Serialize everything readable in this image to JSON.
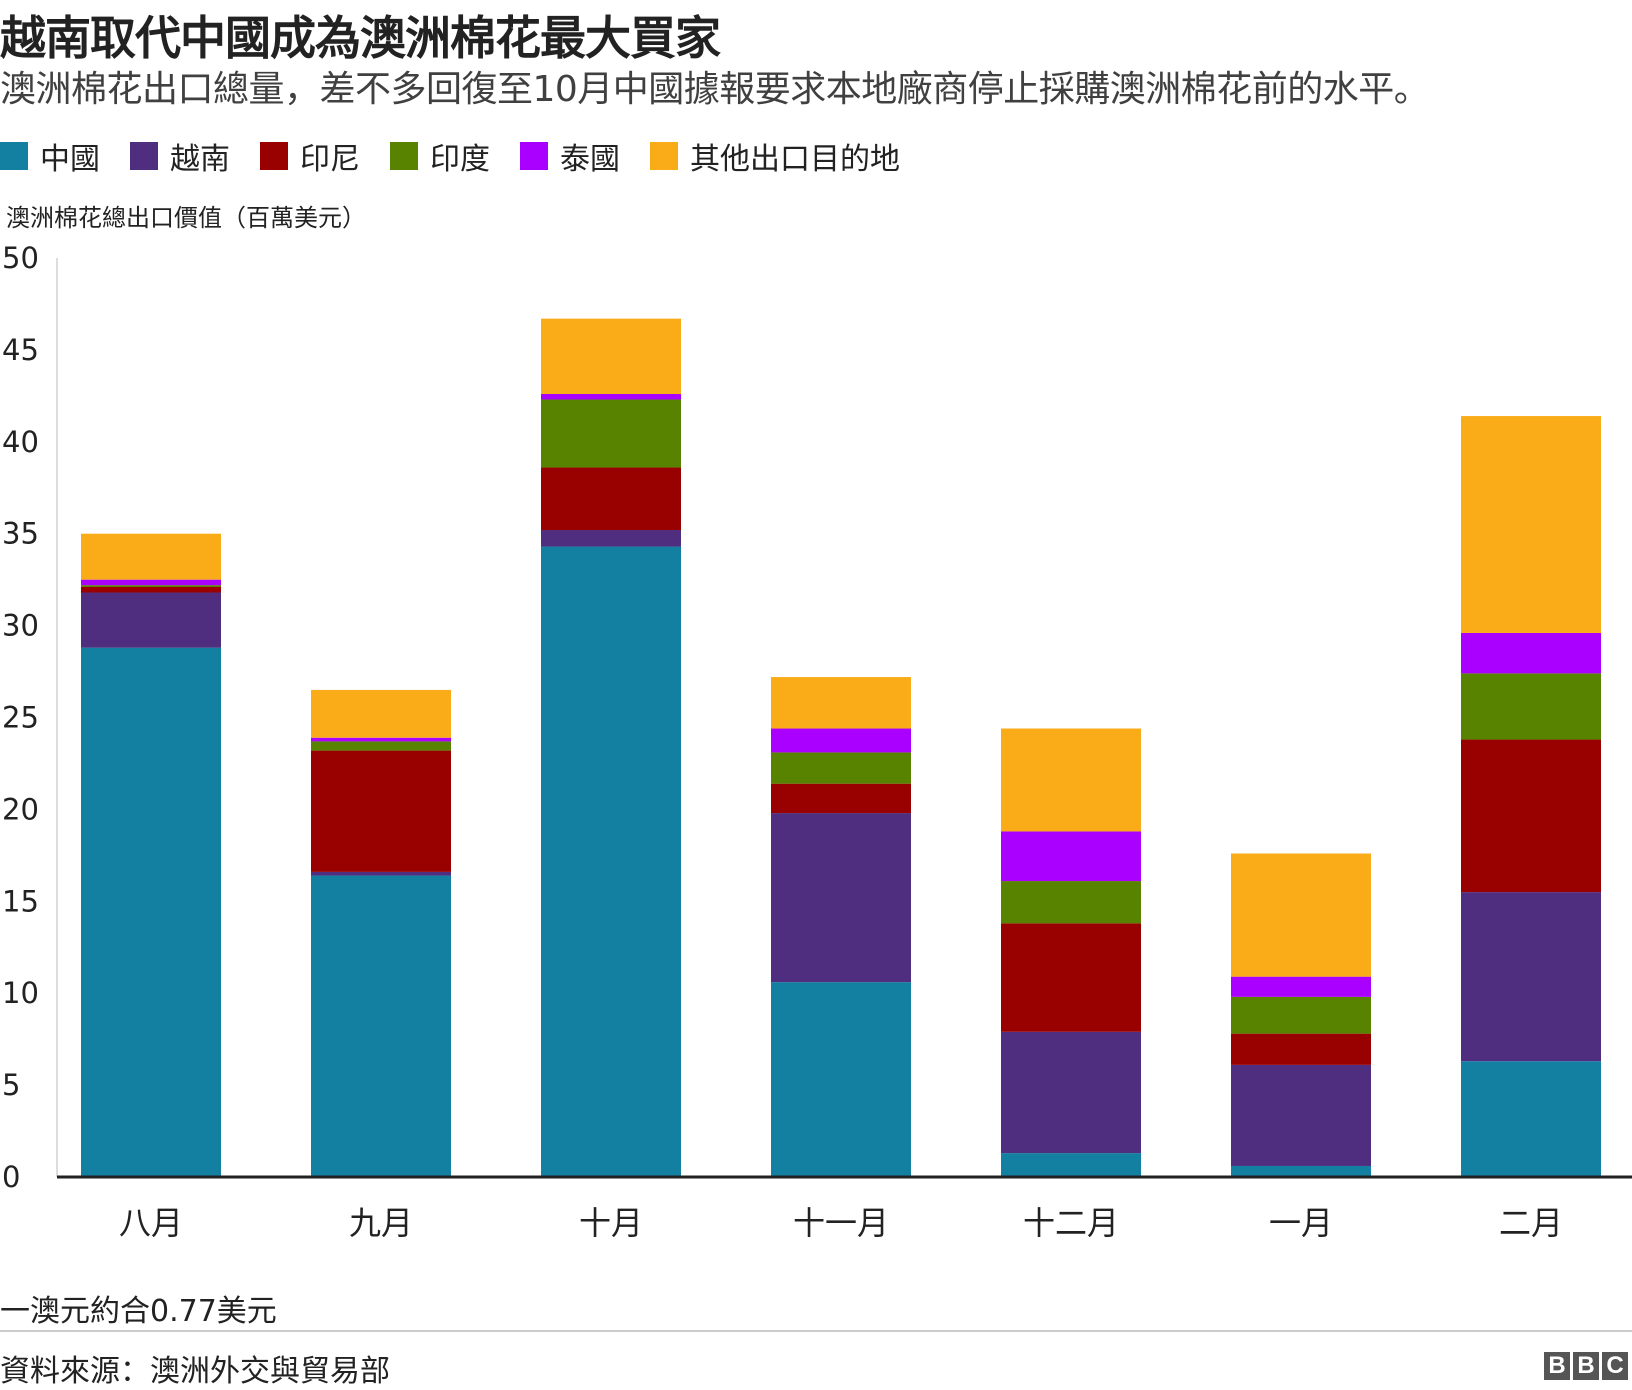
{
  "title": "越南取代中國成為澳洲棉花最大買家",
  "subtitle": "澳洲棉花出口總量，差不多回復至10月中國據報要求本地廠商停止採購澳洲棉花前的水平。",
  "note": "一澳元約合0.77美元",
  "source": "資料來源：澳洲外交與貿易部",
  "logo": [
    "B",
    "B",
    "C"
  ],
  "colors": {
    "china": "#1380A1",
    "vietnam": "#4F2D7F",
    "indonesia": "#990000",
    "india": "#588300",
    "thailand": "#AA00FF",
    "other": "#FAAB18",
    "axis": "#222222"
  },
  "chart_data": {
    "type": "bar",
    "stacked": true,
    "ylabel": "澳洲棉花總出口價值（百萬美元）",
    "xlabel": "",
    "ylim": [
      0,
      50
    ],
    "yticks": [
      0,
      5,
      10,
      15,
      20,
      25,
      30,
      35,
      40,
      45,
      50
    ],
    "grid": false,
    "legend_position": "top-left",
    "categories": [
      "八月",
      "九月",
      "十月",
      "十一月",
      "十二月",
      "一月",
      "二月"
    ],
    "series": [
      {
        "name": "中國",
        "color": "#1380A1",
        "values": [
          28.8,
          16.4,
          34.3,
          10.6,
          1.3,
          0.6,
          6.3
        ]
      },
      {
        "name": "越南",
        "color": "#4F2D7F",
        "values": [
          3.0,
          0.2,
          0.9,
          9.2,
          6.6,
          5.5,
          9.2
        ]
      },
      {
        "name": "印尼",
        "color": "#990000",
        "values": [
          0.3,
          6.6,
          3.4,
          1.6,
          5.9,
          1.7,
          8.3
        ]
      },
      {
        "name": "印度",
        "color": "#588300",
        "values": [
          0.1,
          0.5,
          3.7,
          1.7,
          2.3,
          2.0,
          3.6
        ]
      },
      {
        "name": "泰國",
        "color": "#AA00FF",
        "values": [
          0.3,
          0.2,
          0.3,
          1.3,
          2.7,
          1.1,
          2.2
        ]
      },
      {
        "name": "其他出口目的地",
        "color": "#FAAB18",
        "values": [
          2.5,
          2.6,
          4.1,
          2.8,
          5.6,
          6.7,
          11.8
        ]
      }
    ]
  }
}
